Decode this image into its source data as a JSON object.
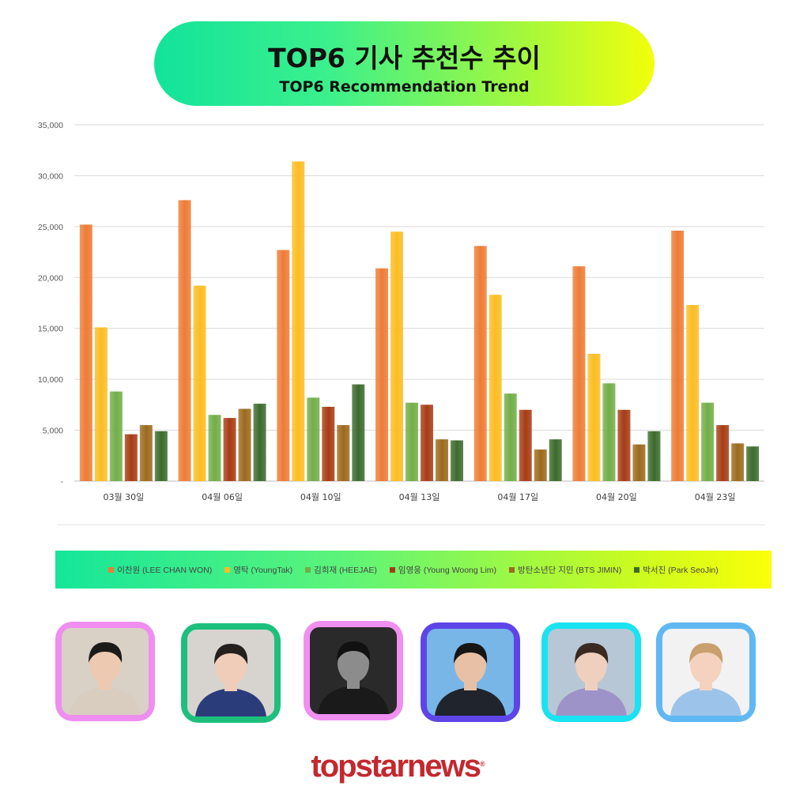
{
  "title": {
    "korean": "TOP6 기사 추천수 추이",
    "english": "TOP6 Recommendation Trend"
  },
  "chart_data": {
    "type": "bar",
    "categories": [
      "03월 30일",
      "04월 06일",
      "04월 10일",
      "04월 13일",
      "04월 17일",
      "04월 20일",
      "04월 23일"
    ],
    "ylim": [
      0,
      35000
    ],
    "yticks": [
      0,
      5000,
      10000,
      15000,
      20000,
      25000,
      30000,
      35000
    ],
    "ytick_labels": [
      "-",
      "5,000",
      "10,000",
      "15,000",
      "20,000",
      "25,000",
      "30,000",
      "35,000"
    ],
    "grid": true,
    "legend_position": "bottom",
    "series": [
      {
        "name": "이찬원 (LEE CHAN WON)",
        "color": "#ee7c36",
        "values": [
          25200,
          27600,
          22700,
          20900,
          23100,
          21100,
          24600
        ]
      },
      {
        "name": "영탁 (YoungTak)",
        "color": "#fcbd22",
        "values": [
          15100,
          19200,
          31400,
          24500,
          18300,
          12500,
          17300
        ]
      },
      {
        "name": "김희재 (HEEJAE)",
        "color": "#72ae48",
        "values": [
          8800,
          6500,
          8200,
          7700,
          8600,
          9600,
          7700
        ]
      },
      {
        "name": "임영웅 (Young Woong Lim)",
        "color": "#a73c14",
        "values": [
          4600,
          6200,
          7300,
          7500,
          7000,
          7000,
          5500
        ]
      },
      {
        "name": "방탄소년단 지민 (BTS JIMIN)",
        "color": "#9c6a1d",
        "values": [
          5500,
          7100,
          5500,
          4100,
          3100,
          3600,
          3700
        ]
      },
      {
        "name": "박서진 (Park SeoJin)",
        "color": "#3c6b2c",
        "values": [
          4900,
          7600,
          9500,
          4000,
          4100,
          4900,
          3400
        ]
      }
    ]
  },
  "photos": [
    {
      "person": "이찬원",
      "border": "#ef8ef0"
    },
    {
      "person": "영탁",
      "border": "#1dbf7c"
    },
    {
      "person": "김희재",
      "border": "#f08ff0"
    },
    {
      "person": "임영웅",
      "border": "#5e45e8"
    },
    {
      "person": "방탄소년단 지민",
      "border": "#19e3f0"
    },
    {
      "person": "박서진",
      "border": "#5fb8f2"
    }
  ],
  "logo": {
    "text": "topstarnews",
    "mark": "®"
  }
}
